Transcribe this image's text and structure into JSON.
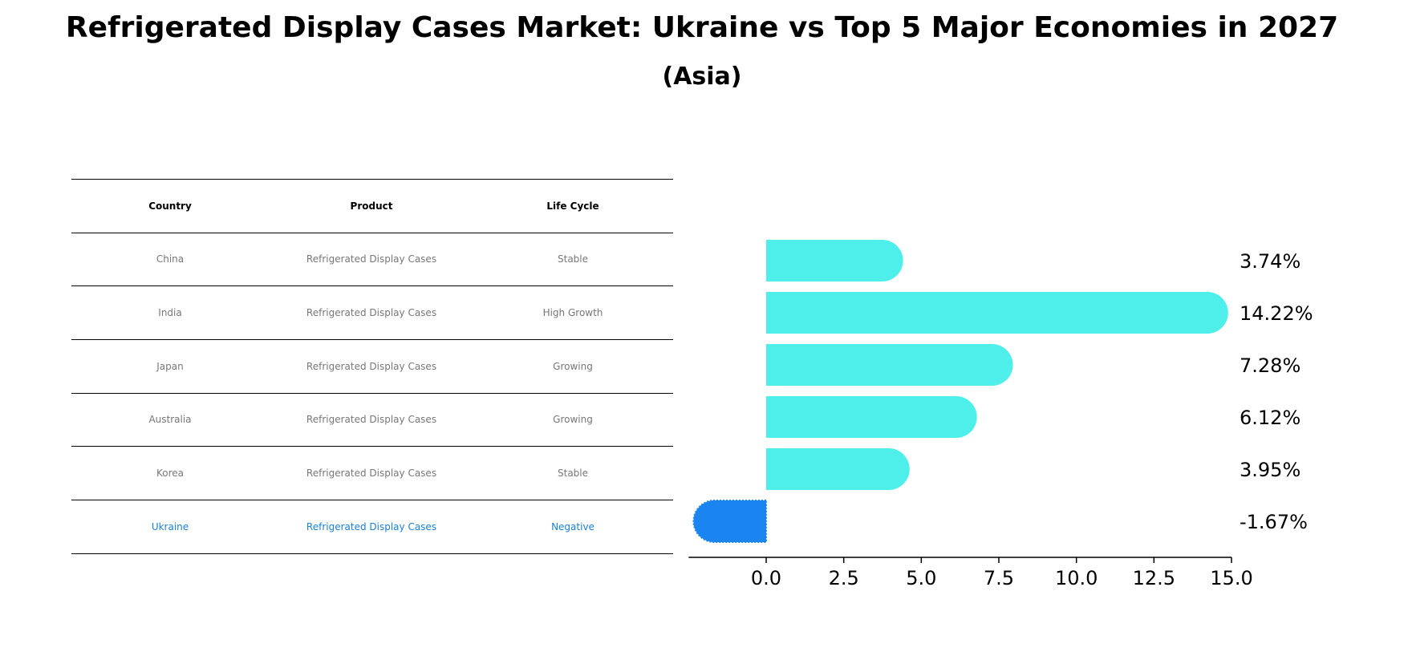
{
  "header": {
    "title": "Refrigerated Display Cases Market: Ukraine vs Top 5 Major Economies in 2027",
    "subtitle": "(Asia)"
  },
  "table": {
    "columns": [
      "Country",
      "Product",
      "Life Cycle"
    ],
    "rows": [
      {
        "country": "China",
        "product": "Refrigerated Display Cases",
        "life_cycle": "Stable",
        "highlight": false
      },
      {
        "country": "India",
        "product": "Refrigerated Display Cases",
        "life_cycle": "High Growth",
        "highlight": false
      },
      {
        "country": "Japan",
        "product": "Refrigerated Display Cases",
        "life_cycle": "Growing",
        "highlight": false
      },
      {
        "country": "Australia",
        "product": "Refrigerated Display Cases",
        "life_cycle": "Growing",
        "highlight": false
      },
      {
        "country": "Korea",
        "product": "Refrigerated Display Cases",
        "life_cycle": "Stable",
        "highlight": false
      },
      {
        "country": "Ukraine",
        "product": "Refrigerated Display Cases",
        "life_cycle": "Negative",
        "highlight": true
      }
    ]
  },
  "chart_data": {
    "type": "bar",
    "orientation": "horizontal",
    "categories": [
      "China",
      "India",
      "Japan",
      "Australia",
      "Korea",
      "Ukraine"
    ],
    "values": [
      3.74,
      14.22,
      7.28,
      6.12,
      3.95,
      -1.67
    ],
    "value_labels": [
      "3.74%",
      "14.22%",
      "7.28%",
      "6.12%",
      "3.95%",
      "-1.67%"
    ],
    "xlim": [
      -2.5,
      15.0
    ],
    "xticks": [
      "0.0",
      "2.5",
      "5.0",
      "7.5",
      "10.0",
      "12.5",
      "15.0"
    ],
    "grid": false,
    "colors": {
      "default": "#4eeeea",
      "highlight": "#1a85f0"
    }
  }
}
